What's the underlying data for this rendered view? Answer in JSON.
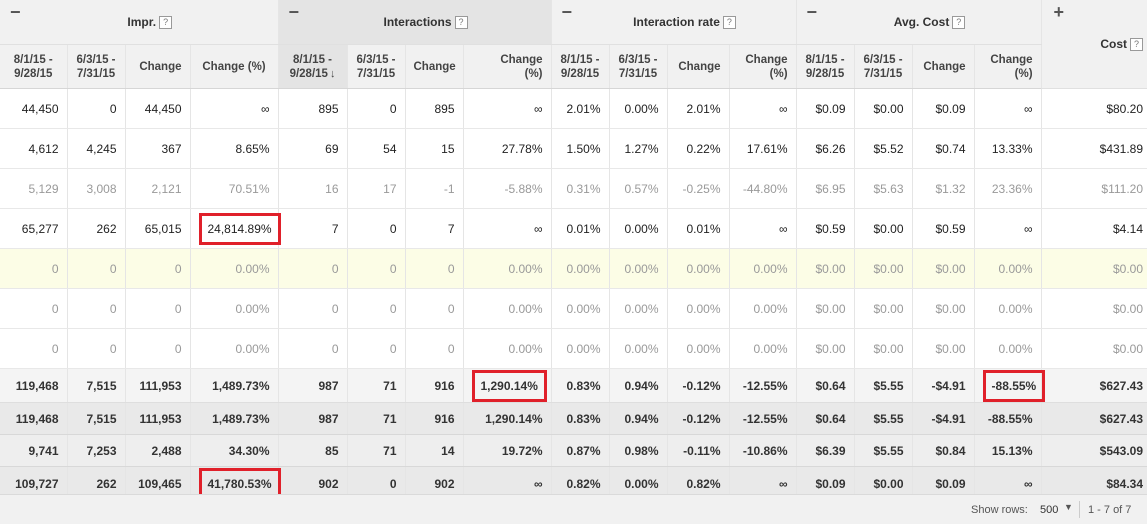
{
  "groups": [
    {
      "toggle": "−",
      "title": "Impr.",
      "help": "?"
    },
    {
      "toggle": "−",
      "title": "Interactions",
      "help": "?"
    },
    {
      "toggle": "−",
      "title": "Interaction rate",
      "help": "?"
    },
    {
      "toggle": "−",
      "title": "Avg. Cost",
      "help": "?"
    },
    {
      "toggle": "+",
      "title": "Cost",
      "help": "?"
    }
  ],
  "subheaders": {
    "period1": [
      "8/1/15 -",
      "9/28/15"
    ],
    "period2": [
      "6/3/15 -",
      "7/31/15"
    ],
    "change": "Change",
    "change_pct": [
      "Change",
      "(%)"
    ],
    "change_pct_inline": "Change (%)",
    "sort_arrow": "↓"
  },
  "rows": [
    [
      "44,450",
      "0",
      "44,450",
      "∞",
      "895",
      "0",
      "895",
      "∞",
      "2.01%",
      "0.00%",
      "2.01%",
      "∞",
      "$0.09",
      "$0.00",
      "$0.09",
      "∞",
      "$80.20"
    ],
    [
      "4,612",
      "4,245",
      "367",
      "8.65%",
      "69",
      "54",
      "15",
      "27.78%",
      "1.50%",
      "1.27%",
      "0.22%",
      "17.61%",
      "$6.26",
      "$5.52",
      "$0.74",
      "13.33%",
      "$431.89"
    ],
    [
      "5,129",
      "3,008",
      "2,121",
      "70.51%",
      "16",
      "17",
      "-1",
      "-5.88%",
      "0.31%",
      "0.57%",
      "-0.25%",
      "-44.80%",
      "$6.95",
      "$5.63",
      "$1.32",
      "23.36%",
      "$111.20"
    ],
    [
      "65,277",
      "262",
      "65,015",
      "24,814.89%",
      "7",
      "0",
      "7",
      "∞",
      "0.01%",
      "0.00%",
      "0.01%",
      "∞",
      "$0.59",
      "$0.00",
      "$0.59",
      "∞",
      "$4.14"
    ],
    [
      "0",
      "0",
      "0",
      "0.00%",
      "0",
      "0",
      "0",
      "0.00%",
      "0.00%",
      "0.00%",
      "0.00%",
      "0.00%",
      "$0.00",
      "$0.00",
      "$0.00",
      "0.00%",
      "$0.00"
    ],
    [
      "0",
      "0",
      "0",
      "0.00%",
      "0",
      "0",
      "0",
      "0.00%",
      "0.00%",
      "0.00%",
      "0.00%",
      "0.00%",
      "$0.00",
      "$0.00",
      "$0.00",
      "0.00%",
      "$0.00"
    ],
    [
      "0",
      "0",
      "0",
      "0.00%",
      "0",
      "0",
      "0",
      "0.00%",
      "0.00%",
      "0.00%",
      "0.00%",
      "0.00%",
      "$0.00",
      "$0.00",
      "$0.00",
      "0.00%",
      "$0.00"
    ]
  ],
  "totals": [
    [
      "119,468",
      "7,515",
      "111,953",
      "1,489.73%",
      "987",
      "71",
      "916",
      "1,290.14%",
      "0.83%",
      "0.94%",
      "-0.12%",
      "-12.55%",
      "$0.64",
      "$5.55",
      "-$4.91",
      "-88.55%",
      "$627.43"
    ],
    [
      "119,468",
      "7,515",
      "111,953",
      "1,489.73%",
      "987",
      "71",
      "916",
      "1,290.14%",
      "0.83%",
      "0.94%",
      "-0.12%",
      "-12.55%",
      "$0.64",
      "$5.55",
      "-$4.91",
      "-88.55%",
      "$627.43"
    ],
    [
      "9,741",
      "7,253",
      "2,488",
      "34.30%",
      "85",
      "71",
      "14",
      "19.72%",
      "0.87%",
      "0.98%",
      "-0.11%",
      "-10.86%",
      "$6.39",
      "$5.55",
      "$0.84",
      "15.13%",
      "$543.09"
    ],
    [
      "109,727",
      "262",
      "109,465",
      "41,780.53%",
      "902",
      "0",
      "902",
      "∞",
      "0.82%",
      "0.00%",
      "0.82%",
      "∞",
      "$0.09",
      "$0.00",
      "$0.09",
      "∞",
      "$84.34"
    ]
  ],
  "highlight_color": "#e0202a",
  "footer": {
    "show_rows_label": "Show rows:",
    "show_rows_value": "500",
    "range": "1 - 7 of 7"
  }
}
